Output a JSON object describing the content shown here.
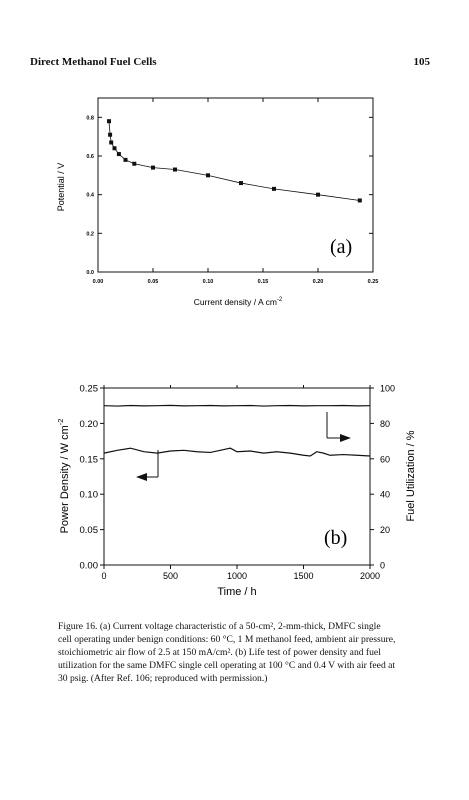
{
  "running_head": {
    "title": "Direct Methanol Fuel Cells",
    "page_number": "105"
  },
  "chart_data": [
    {
      "type": "line",
      "panel_label": "(a)",
      "xlabel": "Current density / A cm",
      "xlabel_sup": "-2",
      "ylabel": "Potential / V",
      "xlim": [
        0.0,
        0.25
      ],
      "ylim": [
        0.0,
        0.9
      ],
      "x_ticks": [
        "0.00",
        "0.05",
        "0.10",
        "0.15",
        "0.20",
        "0.25"
      ],
      "x_tick_values": [
        0.0,
        0.05,
        0.1,
        0.15,
        0.2,
        0.25
      ],
      "y_ticks": [
        "0.0",
        "0.2",
        "0.4",
        "0.6",
        "0.8"
      ],
      "y_tick_values": [
        0.0,
        0.2,
        0.4,
        0.6,
        0.8
      ],
      "series": [
        {
          "x": [
            0.01,
            0.011,
            0.012,
            0.015,
            0.019,
            0.025,
            0.033,
            0.05,
            0.07,
            0.1,
            0.13,
            0.16,
            0.2,
            0.238
          ],
          "y": [
            0.78,
            0.71,
            0.67,
            0.64,
            0.61,
            0.58,
            0.56,
            0.54,
            0.53,
            0.5,
            0.46,
            0.43,
            0.4,
            0.37
          ]
        }
      ],
      "grid": false
    },
    {
      "type": "line",
      "panel_label": "(b)",
      "xlabel": "Time / h",
      "ylabel": "Power Density / W cm",
      "ylabel_sup": "-2",
      "y2label": "Fuel Utilization / %",
      "xlim": [
        0,
        2000
      ],
      "ylim": [
        0.0,
        0.25
      ],
      "y2lim": [
        0,
        100
      ],
      "x_ticks": [
        "0",
        "500",
        "1000",
        "1500",
        "2000"
      ],
      "x_tick_values": [
        0,
        500,
        1000,
        1500,
        2000
      ],
      "y_ticks": [
        "0.00",
        "0.05",
        "0.10",
        "0.15",
        "0.20",
        "0.25"
      ],
      "y_tick_values": [
        0.0,
        0.05,
        0.1,
        0.15,
        0.2,
        0.25
      ],
      "y2_ticks": [
        "0",
        "20",
        "40",
        "60",
        "80",
        "100"
      ],
      "y2_tick_values": [
        0,
        20,
        40,
        60,
        80,
        100
      ],
      "series": [
        {
          "axis": "left",
          "x": [
            0,
            100,
            200,
            300,
            400,
            500,
            600,
            700,
            800,
            900,
            950,
            1000,
            1100,
            1200,
            1300,
            1400,
            1500,
            1550,
            1600,
            1650,
            1700,
            1800,
            1900,
            2000
          ],
          "y": [
            0.158,
            0.162,
            0.165,
            0.16,
            0.158,
            0.161,
            0.162,
            0.16,
            0.159,
            0.163,
            0.165,
            0.16,
            0.161,
            0.158,
            0.16,
            0.158,
            0.155,
            0.154,
            0.16,
            0.158,
            0.155,
            0.156,
            0.155,
            0.154
          ]
        },
        {
          "axis": "right",
          "x": [
            0,
            100,
            200,
            300,
            400,
            500,
            600,
            700,
            800,
            900,
            1000,
            1100,
            1200,
            1300,
            1400,
            1500,
            1600,
            1700,
            1800,
            1900,
            2000
          ],
          "y": [
            90.0,
            89.8,
            90.1,
            89.9,
            90.0,
            90.2,
            89.9,
            90.0,
            90.1,
            89.9,
            90.0,
            90.1,
            89.8,
            90.0,
            90.1,
            89.9,
            90.0,
            90.0,
            90.1,
            89.9,
            90.0
          ]
        }
      ],
      "grid": false
    }
  ],
  "caption": {
    "lines": [
      "Figure 16.  (a) Current voltage characteristic of a 50-cm², 2-mm-thick, DMFC single",
      "cell operating under benign conditions: 60 °C, 1 M methanol feed, ambient air pressure,",
      "stoichiometric air flow of 2.5 at 150 mA/cm².  (b) Life test of power density and fuel",
      "utilization for the same DMFC single cell operating at 100 °C and 0.4 V with air feed at",
      "30 psig.  (After Ref. 106; reproduced with permission.)"
    ]
  }
}
